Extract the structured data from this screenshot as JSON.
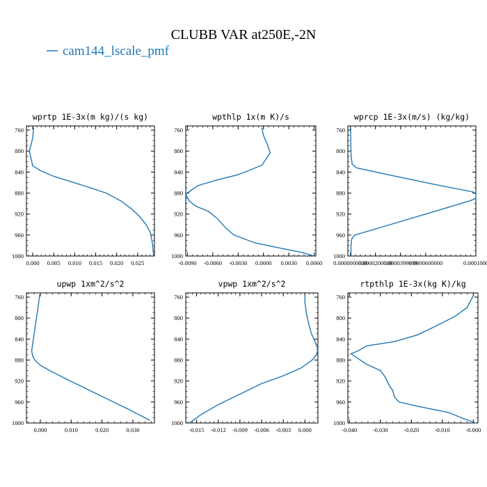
{
  "figure": {
    "title": "CLUBB VAR at250E,-2N",
    "legend_label": "cam144_lscale_pmf",
    "line_color": "#1f77b4"
  },
  "chart_data": [
    {
      "type": "line",
      "title": "wprtp  1E-3x(m kg)/(s kg)",
      "xlim": [
        -0.0015,
        0.029
      ],
      "ylim": [
        1000,
        752
      ],
      "y_inverted": true,
      "xticks": [
        0.0,
        0.005,
        0.01,
        0.015,
        0.02,
        0.025
      ],
      "xtick_labels": [
        "0.000",
        "0.005",
        "0.010",
        "0.015",
        "0.020",
        "0.025"
      ],
      "yticks": [
        760,
        800,
        840,
        880,
        920,
        960,
        1000
      ],
      "ytick_labels": [
        "760",
        "800",
        "840",
        "880",
        "920",
        "960",
        "1000"
      ],
      "series": [
        {
          "x": [
            0.0002,
            0.0001,
            0.0,
            -0.0003,
            -0.0008,
            0.0,
            0.002,
            0.005,
            0.009,
            0.013,
            0.0175,
            0.021,
            0.0235,
            0.0255,
            0.027,
            0.028,
            0.0285,
            0.0288
          ],
          "y": [
            755,
            765,
            775,
            785,
            800,
            828,
            838,
            848,
            858,
            868,
            880,
            895,
            910,
            925,
            940,
            955,
            975,
            1000
          ]
        }
      ]
    },
    {
      "type": "line",
      "title": "wpthlp  1x(m K)/s",
      "xlim": [
        -0.0092,
        0.0062
      ],
      "ylim": [
        1000,
        752
      ],
      "y_inverted": true,
      "xticks": [
        -0.009,
        -0.006,
        -0.003,
        0.0,
        0.003,
        0.006
      ],
      "xtick_labels": [
        "-0.0090",
        "-0.0060",
        "-0.0030",
        "0.0000",
        "0.0030",
        "0.0060"
      ],
      "yticks": [
        760,
        800,
        840,
        880,
        920,
        960,
        1000
      ],
      "ytick_labels": [
        "760",
        "800",
        "840",
        "880",
        "920",
        "960",
        "1000"
      ],
      "series": [
        {
          "x": [
            -0.0002,
            0.0,
            0.0004,
            0.0008,
            -0.0002,
            -0.003,
            -0.0055,
            -0.0078,
            -0.0092,
            -0.0088,
            -0.008,
            -0.0065,
            -0.0055,
            -0.0045,
            -0.0035,
            -0.001,
            0.002,
            0.0045,
            0.006
          ],
          "y": [
            755,
            770,
            785,
            803,
            827,
            845,
            855,
            866,
            882,
            895,
            905,
            915,
            928,
            946,
            960,
            975,
            985,
            993,
            1000
          ]
        }
      ]
    },
    {
      "type": "line",
      "title": "wprcp  1E-3x(m/s) (kg/kg)",
      "xlim": [
        -2e-06,
        0.0001
      ],
      "ylim": [
        1000,
        752
      ],
      "y_inverted": true,
      "xticks": [
        0.0,
        2e-05,
        4e-05,
        6e-05,
        0.0001
      ],
      "xtick_labels": [
        "0.0000000000",
        "0.0000200000",
        "0.0000399999",
        "0.0000600000",
        "0.0001000"
      ],
      "yticks": [
        760,
        800,
        840,
        880,
        920,
        960,
        1000
      ],
      "ytick_labels": [
        "760",
        "800",
        "840",
        "880",
        "920",
        "960",
        "1000"
      ],
      "series": [
        {
          "x": [
            2e-07,
            3e-07,
            6e-07,
            1.5e-06,
            5e-06,
            3e-05,
            7e-05,
            9.8e-05,
            0.0001,
            0.0001,
            9.5e-05,
            6e-05,
            2.5e-05,
            3.5e-06,
            1e-06,
            5e-07,
            5e-07
          ],
          "y": [
            755,
            780,
            810,
            825,
            832,
            845,
            865,
            878,
            882,
            890,
            895,
            920,
            945,
            960,
            968,
            980,
            1000
          ]
        }
      ]
    },
    {
      "type": "line",
      "title": "upwp  1xm^2/s^2",
      "xlim": [
        -0.0045,
        0.037
      ],
      "ylim": [
        1000,
        752
      ],
      "y_inverted": true,
      "xticks": [
        0.0,
        0.01,
        0.02,
        0.03
      ],
      "xtick_labels": [
        "0.000",
        "0.010",
        "0.020",
        "0.030"
      ],
      "yticks": [
        760,
        800,
        840,
        880,
        920,
        960,
        1000
      ],
      "ytick_labels": [
        "760",
        "800",
        "840",
        "880",
        "920",
        "960",
        "1000"
      ],
      "series": [
        {
          "x": [
            -0.0002,
            -0.0005,
            -0.001,
            -0.0015,
            -0.002,
            -0.0025,
            -0.0028,
            -0.0025,
            -0.0018,
            0.0,
            0.003,
            0.008,
            0.015,
            0.022,
            0.029,
            0.0355
          ],
          "y": [
            755,
            770,
            790,
            810,
            830,
            850,
            862,
            872,
            880,
            890,
            900,
            915,
            935,
            955,
            975,
            995
          ]
        }
      ]
    },
    {
      "type": "line",
      "title": "vpwp  1xm^2/s^2",
      "xlim": [
        -0.0165,
        0.0018
      ],
      "ylim": [
        1000,
        752
      ],
      "y_inverted": true,
      "xticks": [
        -0.015,
        -0.012,
        -0.009,
        -0.006,
        -0.003,
        0.0
      ],
      "xtick_labels": [
        "-0.015",
        "-0.012",
        "-0.009",
        "-0.006",
        "-0.003",
        "0.000"
      ],
      "yticks": [
        760,
        800,
        840,
        880,
        920,
        960,
        1000
      ],
      "ytick_labels": [
        "760",
        "800",
        "840",
        "880",
        "920",
        "960",
        "1000"
      ],
      "series": [
        {
          "x": [
            0.0,
            0.0,
            0.0002,
            0.0005,
            0.0009,
            0.0014,
            0.0018,
            0.0016,
            0.001,
            -0.0005,
            -0.003,
            -0.006,
            -0.009,
            -0.012,
            -0.0145,
            -0.016
          ],
          "y": [
            755,
            770,
            790,
            810,
            830,
            845,
            860,
            870,
            880,
            895,
            910,
            925,
            945,
            965,
            985,
            1000
          ]
        }
      ]
    },
    {
      "type": "line",
      "title": "rtpthlp  1E-3x(kg K)/kg",
      "xlim": [
        -0.0405,
        0.0015
      ],
      "ylim": [
        1000,
        752
      ],
      "y_inverted": true,
      "xticks": [
        -0.04,
        -0.03,
        -0.02,
        -0.01,
        0.0
      ],
      "xtick_labels": [
        "-0.040",
        "-0.030",
        "-0.020",
        "-0.010",
        "-0.000"
      ],
      "yticks": [
        760,
        800,
        840,
        880,
        920,
        960,
        1000
      ],
      "ytick_labels": [
        "760",
        "800",
        "840",
        "880",
        "920",
        "960",
        "1000"
      ],
      "series": [
        {
          "x": [
            0.0002,
            -0.002,
            -0.006,
            -0.012,
            -0.018,
            -0.0255,
            -0.0345,
            -0.037,
            -0.0395,
            -0.0345,
            -0.03,
            -0.0285,
            -0.027,
            -0.026,
            -0.0255,
            -0.024,
            -0.018,
            -0.008,
            -0.003,
            0.0008
          ],
          "y": [
            755,
            780,
            797,
            815,
            832,
            845,
            853,
            862,
            868,
            888,
            900,
            912,
            930,
            938,
            950,
            960,
            968,
            980,
            992,
            1000
          ]
        }
      ]
    }
  ]
}
